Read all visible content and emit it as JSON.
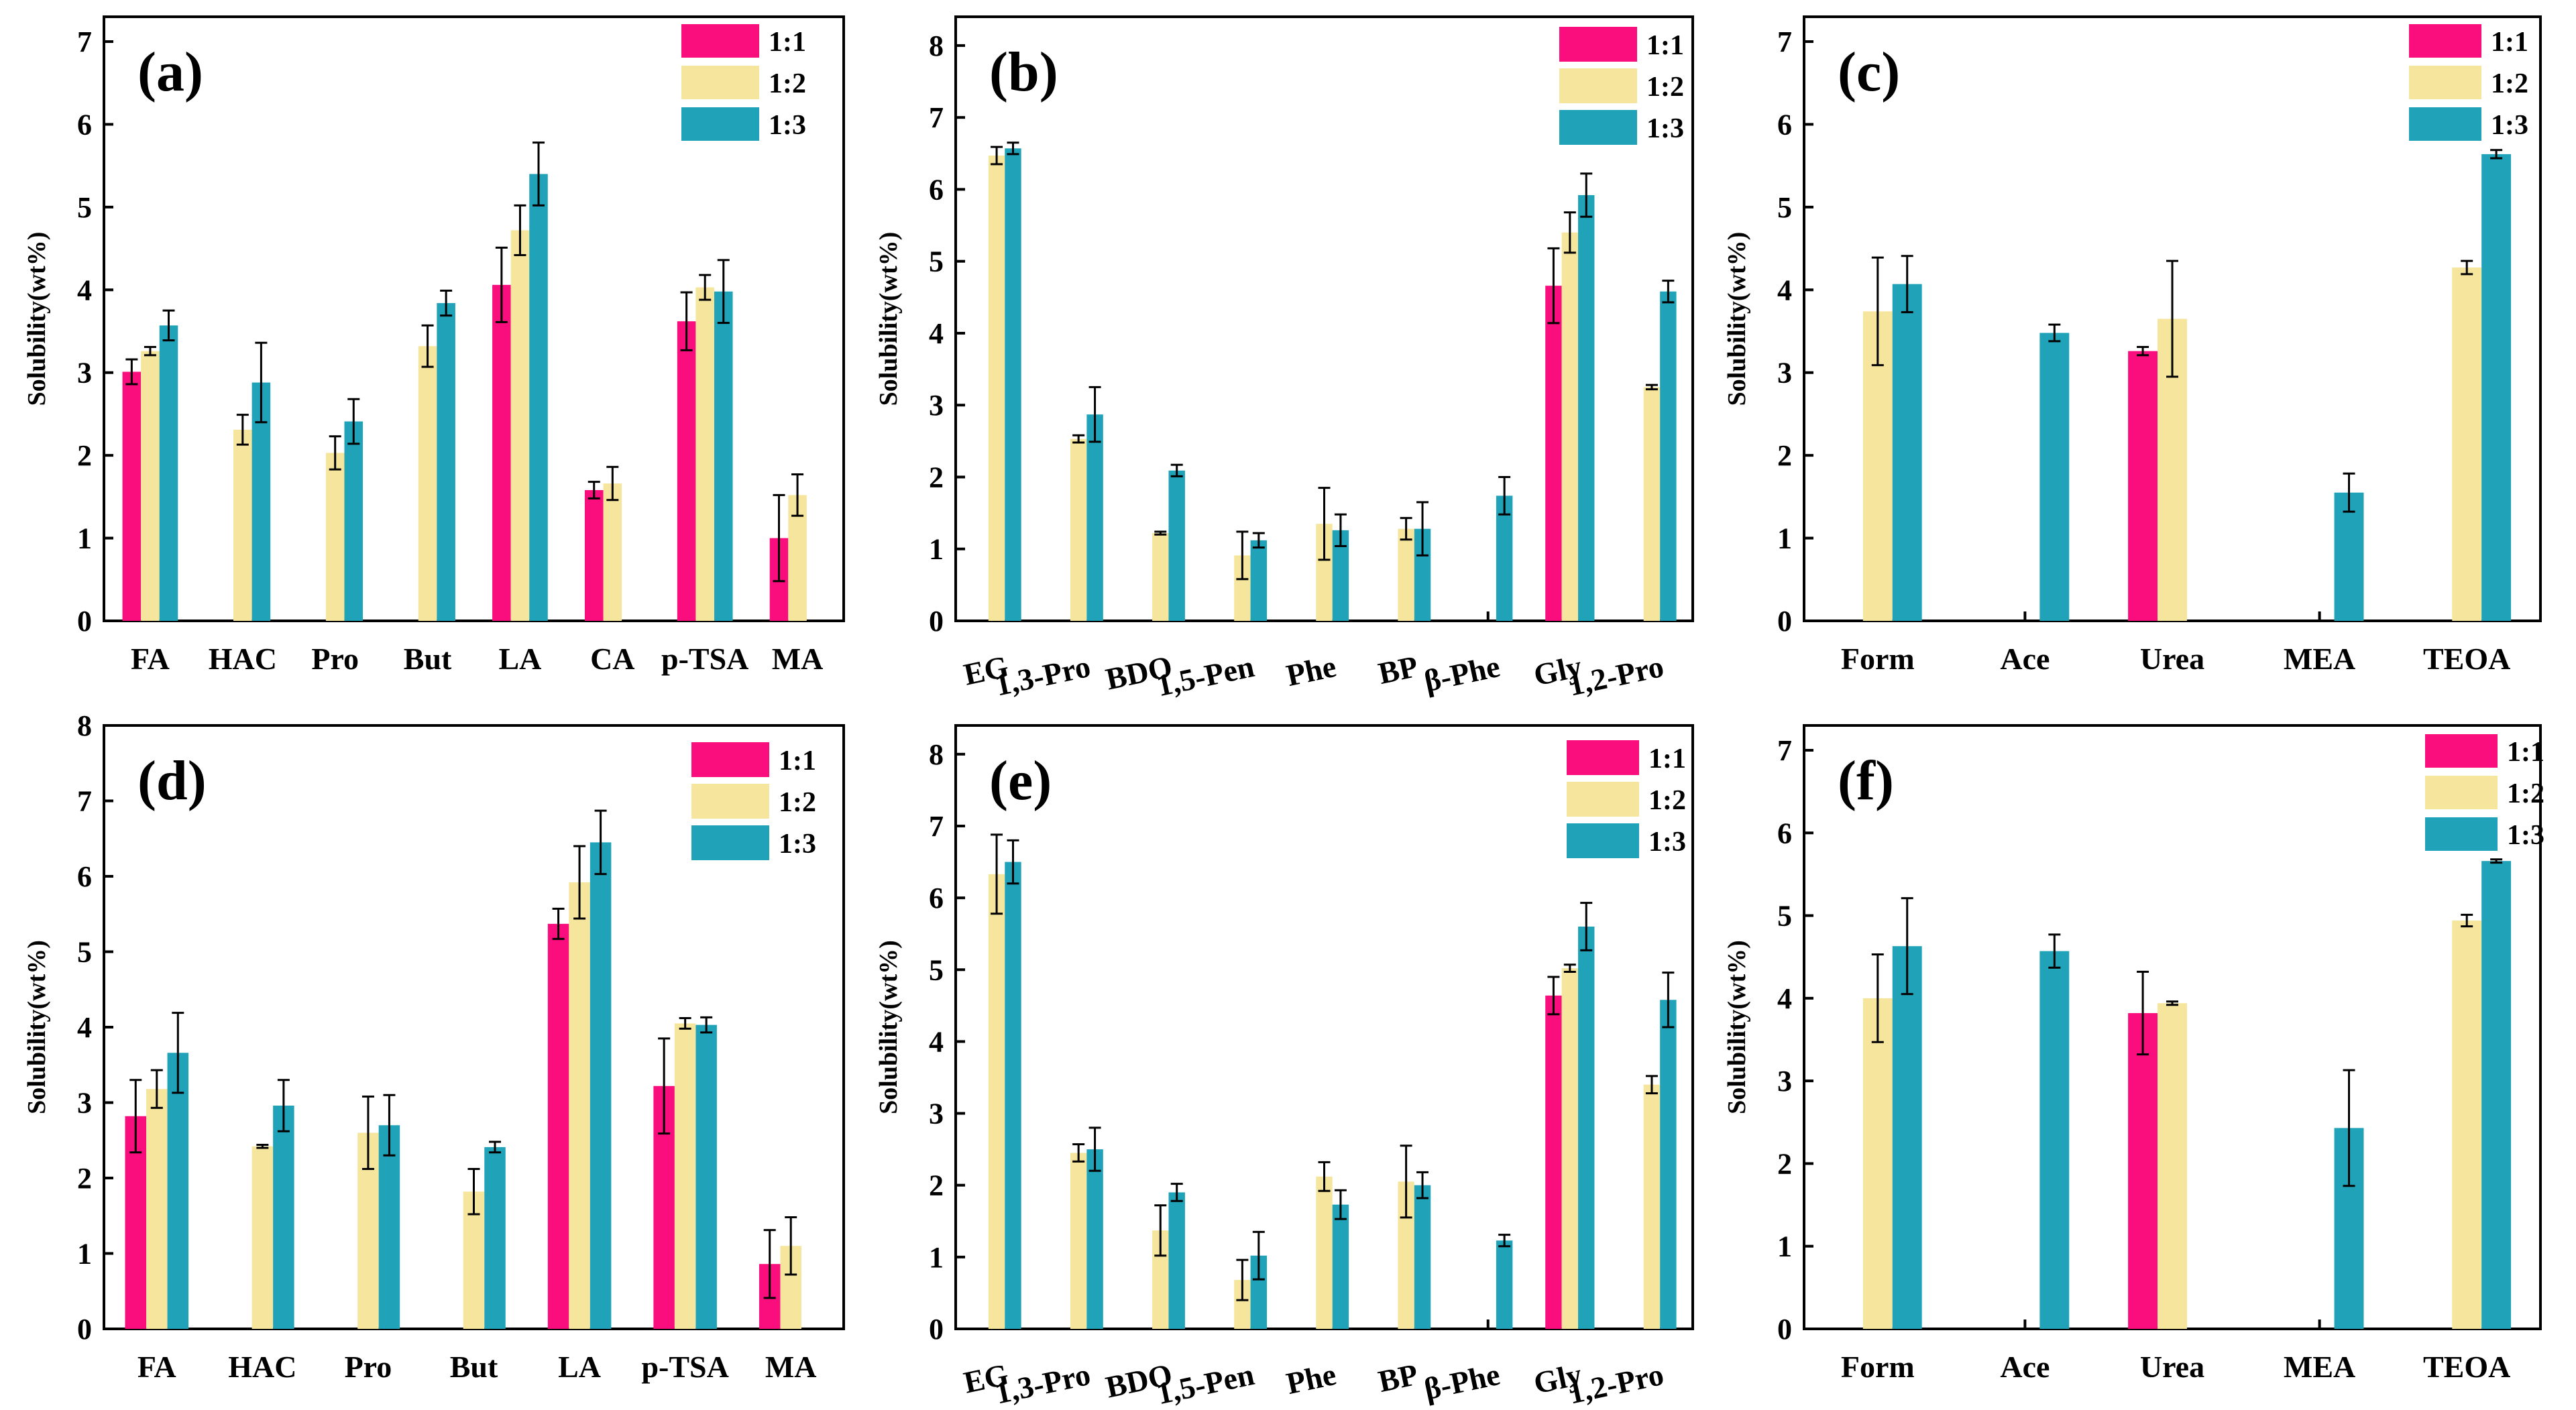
{
  "colors": {
    "1:1": "#fa0e7d",
    "1:2": "#f6e59c",
    "1:3": "#20a3b9"
  },
  "chart_data": [
    {
      "type": "bar",
      "label": "(a)",
      "ylabel": "Solubility(wt%)",
      "ylim": [
        0,
        7.3
      ],
      "yticks": [
        0,
        1,
        2,
        3,
        4,
        5,
        6,
        7
      ],
      "categories": [
        "FA",
        "HAC",
        "Pro",
        "But",
        "LA",
        "CA",
        "p-TSA",
        "MA"
      ],
      "legend": [
        "1:1",
        "1:2",
        "1:3"
      ],
      "series": [
        {
          "name": "1:1",
          "values": [
            3.01,
            null,
            null,
            null,
            4.06,
            1.58,
            3.62,
            1.0
          ],
          "errors": [
            0.15,
            null,
            null,
            null,
            0.45,
            0.1,
            0.35,
            0.52
          ]
        },
        {
          "name": "1:2",
          "values": [
            3.26,
            2.31,
            2.03,
            3.32,
            4.72,
            1.66,
            4.03,
            1.52
          ],
          "errors": [
            0.05,
            0.18,
            0.2,
            0.25,
            0.3,
            0.2,
            0.15,
            0.25
          ]
        },
        {
          "name": "1:3",
          "values": [
            3.57,
            2.88,
            2.41,
            3.84,
            5.4,
            null,
            3.98,
            null
          ],
          "errors": [
            0.18,
            0.48,
            0.27,
            0.15,
            0.38,
            null,
            0.38,
            null
          ]
        }
      ]
    },
    {
      "type": "bar",
      "label": "(b)",
      "ylabel": "Solubility(wt%)",
      "ylim": [
        0,
        8.4
      ],
      "yticks": [
        0,
        1,
        2,
        3,
        4,
        5,
        6,
        7,
        8
      ],
      "categories": [
        "EG",
        "1,3-Pro",
        "BDO",
        "1,5-Pen",
        "Phe",
        "BP",
        "β-Phe",
        "Gly",
        "1,2-Pro"
      ],
      "legend": [
        "1:1",
        "1:2",
        "1:3"
      ],
      "series": [
        {
          "name": "1:1",
          "values": [
            null,
            null,
            null,
            null,
            null,
            null,
            null,
            4.66,
            null
          ],
          "errors": [
            null,
            null,
            null,
            null,
            null,
            null,
            null,
            0.52,
            null
          ]
        },
        {
          "name": "1:2",
          "values": [
            6.47,
            2.53,
            1.22,
            0.91,
            1.35,
            1.28,
            null,
            5.4,
            3.25
          ],
          "errors": [
            0.12,
            0.05,
            0.02,
            0.33,
            0.5,
            0.15,
            null,
            0.28,
            0.03
          ]
        },
        {
          "name": "1:3",
          "values": [
            6.57,
            2.87,
            2.09,
            1.12,
            1.26,
            1.28,
            1.74,
            5.92,
            4.58
          ],
          "errors": [
            0.08,
            0.38,
            0.08,
            0.1,
            0.22,
            0.37,
            0.26,
            0.3,
            0.15
          ]
        }
      ]
    },
    {
      "type": "bar",
      "label": "(c)",
      "ylabel": "Solubility(wt%)",
      "ylim": [
        0,
        7.3
      ],
      "yticks": [
        0,
        1,
        2,
        3,
        4,
        5,
        6,
        7
      ],
      "categories": [
        "Form",
        "Ace",
        "Urea",
        "MEA",
        "TEOA"
      ],
      "legend": [
        "1:1",
        "1:2",
        "1:3"
      ],
      "series": [
        {
          "name": "1:1",
          "values": [
            null,
            null,
            3.26,
            null,
            null
          ],
          "errors": [
            null,
            null,
            0.05,
            null,
            null
          ]
        },
        {
          "name": "1:2",
          "values": [
            3.74,
            null,
            3.65,
            null,
            4.27
          ],
          "errors": [
            0.65,
            null,
            0.7,
            null,
            0.08
          ]
        },
        {
          "name": "1:3",
          "values": [
            4.07,
            3.48,
            null,
            1.55,
            5.64
          ],
          "errors": [
            0.34,
            0.1,
            null,
            0.23,
            0.05
          ]
        }
      ]
    },
    {
      "type": "bar",
      "label": "(d)",
      "ylabel": "Solubility(wt%)",
      "ylim": [
        0,
        8.0
      ],
      "yticks": [
        0,
        1,
        2,
        3,
        4,
        5,
        6,
        7,
        8
      ],
      "categories": [
        "FA",
        "HAC",
        "Pro",
        "But",
        "LA",
        "p-TSA",
        "MA"
      ],
      "legend": [
        "1:1",
        "1:2",
        "1:3"
      ],
      "series": [
        {
          "name": "1:1",
          "values": [
            2.82,
            null,
            null,
            null,
            5.37,
            3.22,
            0.86
          ],
          "errors": [
            0.48,
            null,
            null,
            null,
            0.2,
            0.63,
            0.45
          ]
        },
        {
          "name": "1:2",
          "values": [
            3.18,
            2.42,
            2.6,
            1.82,
            5.92,
            4.05,
            1.1
          ],
          "errors": [
            0.25,
            0.02,
            0.48,
            0.3,
            0.48,
            0.07,
            0.38
          ]
        },
        {
          "name": "1:3",
          "values": [
            3.66,
            2.96,
            2.7,
            2.41,
            6.45,
            4.03,
            null
          ],
          "errors": [
            0.53,
            0.34,
            0.4,
            0.07,
            0.42,
            0.1,
            null
          ]
        }
      ]
    },
    {
      "type": "bar",
      "label": "(e)",
      "ylabel": "Solubility(wt%)",
      "ylim": [
        0,
        8.4
      ],
      "yticks": [
        0,
        1,
        2,
        3,
        4,
        5,
        6,
        7,
        8
      ],
      "categories": [
        "EG",
        "1,3-Pro",
        "BDO",
        "1,5-Pen",
        "Phe",
        "BP",
        "β-Phe",
        "Gly",
        "1,2-Pro"
      ],
      "legend": [
        "1:1",
        "1:2",
        "1:3"
      ],
      "series": [
        {
          "name": "1:1",
          "values": [
            null,
            null,
            null,
            null,
            null,
            null,
            null,
            4.64,
            null
          ],
          "errors": [
            null,
            null,
            null,
            null,
            null,
            null,
            null,
            0.26,
            null
          ]
        },
        {
          "name": "1:2",
          "values": [
            6.33,
            2.45,
            1.37,
            0.68,
            2.12,
            2.05,
            null,
            5.02,
            3.4
          ],
          "errors": [
            0.55,
            0.12,
            0.35,
            0.28,
            0.2,
            0.5,
            null,
            0.05,
            0.12
          ]
        },
        {
          "name": "1:3",
          "values": [
            6.5,
            2.5,
            1.9,
            1.02,
            1.73,
            2.0,
            1.23,
            5.6,
            4.58
          ],
          "errors": [
            0.3,
            0.3,
            0.12,
            0.33,
            0.2,
            0.18,
            0.08,
            0.33,
            0.38
          ]
        }
      ]
    },
    {
      "type": "bar",
      "label": "(f)",
      "ylabel": "Solubility(wt%)",
      "ylim": [
        0,
        7.3
      ],
      "yticks": [
        0,
        1,
        2,
        3,
        4,
        5,
        6,
        7
      ],
      "categories": [
        "Form",
        "Ace",
        "Urea",
        "MEA",
        "TEOA"
      ],
      "legend": [
        "1:1",
        "1:2",
        "1:3"
      ],
      "series": [
        {
          "name": "1:1",
          "values": [
            null,
            null,
            3.82,
            null,
            null
          ],
          "errors": [
            null,
            null,
            0.5,
            null,
            null
          ]
        },
        {
          "name": "1:2",
          "values": [
            4.0,
            null,
            3.94,
            null,
            4.94
          ],
          "errors": [
            0.53,
            null,
            0.02,
            null,
            0.07
          ]
        },
        {
          "name": "1:3",
          "values": [
            4.63,
            4.57,
            null,
            2.43,
            5.66
          ],
          "errors": [
            0.58,
            0.2,
            null,
            0.7,
            0.02
          ]
        }
      ]
    }
  ]
}
